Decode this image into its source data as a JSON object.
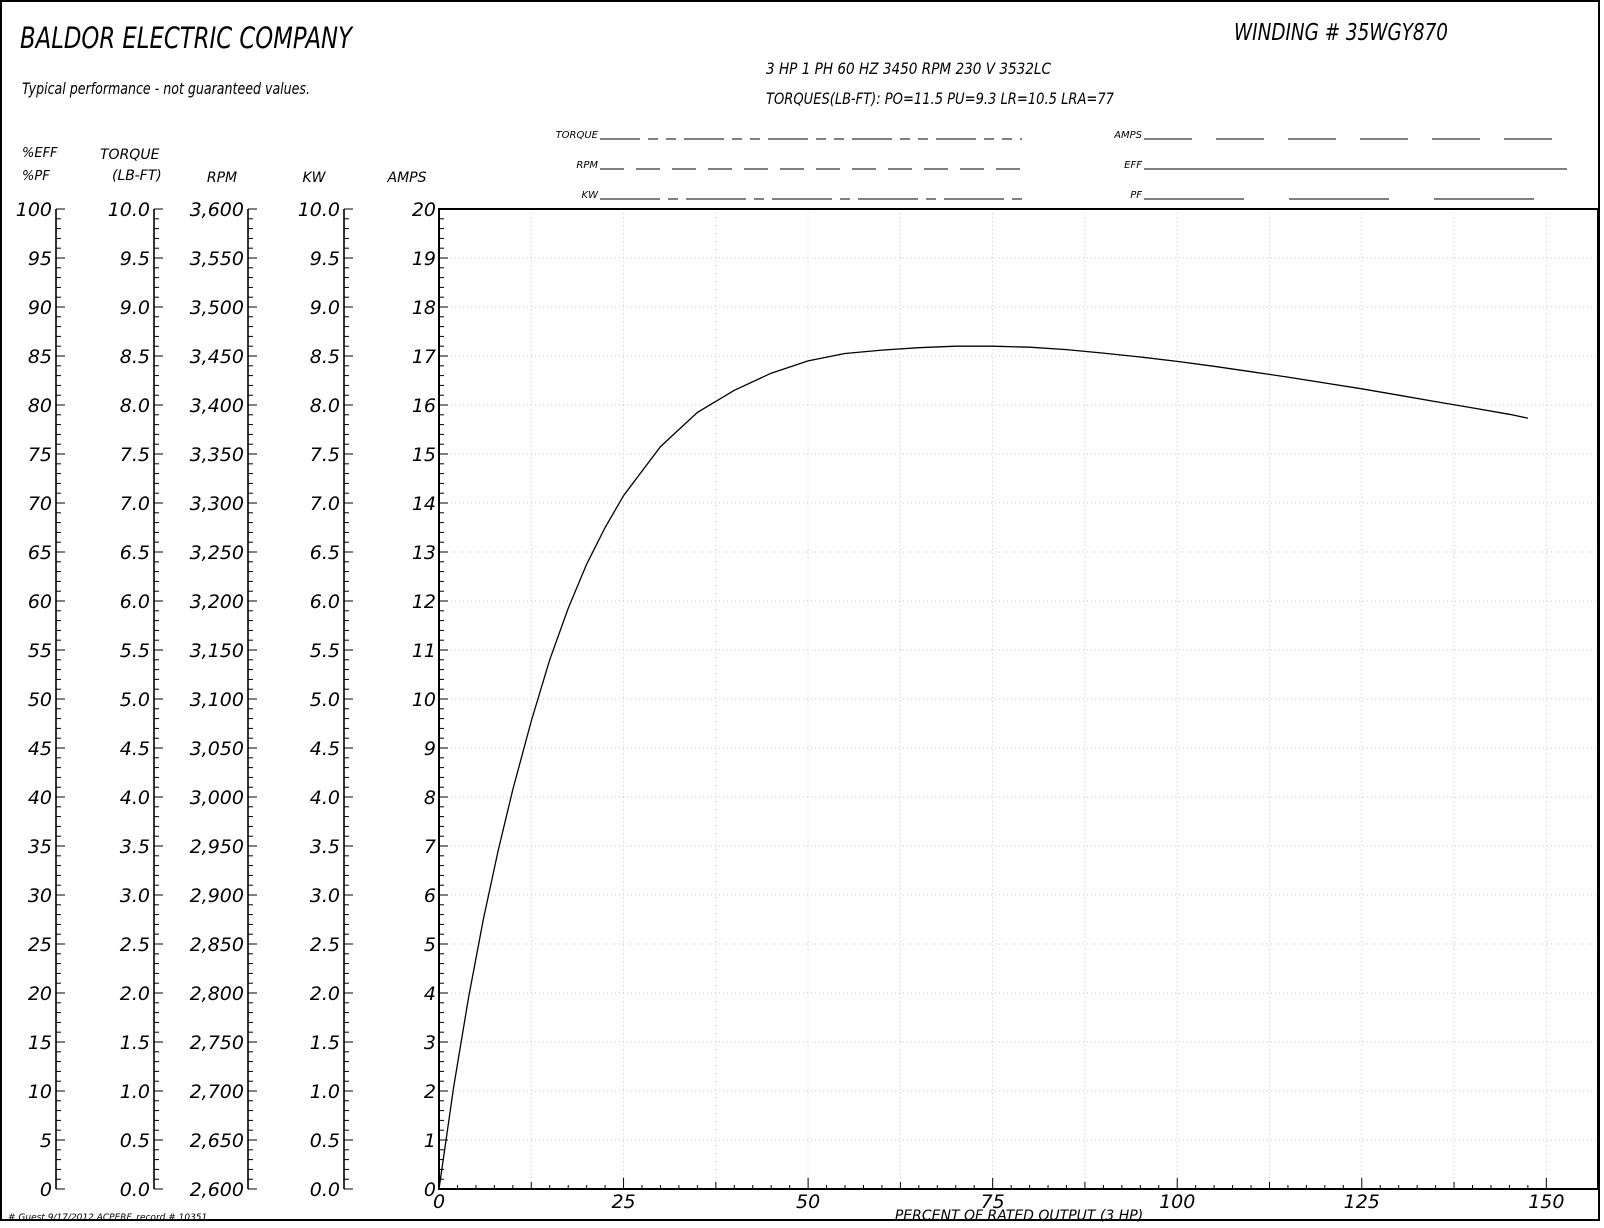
{
  "header": {
    "company": "BALDOR ELECTRIC COMPANY",
    "disclaimer": "Typical performance - not guaranteed values.",
    "winding": "WINDING # 35WGY870",
    "rating": "3 HP  1 PH  60 HZ  3450 RPM  230 V  3532LC",
    "torques": "TORQUES(LB-FT): PO=11.5  PU=9.3  LR=10.5  LRA=77"
  },
  "legend": {
    "torque": "TORQUE",
    "rpm": "RPM",
    "kw": "KW",
    "amps": "AMPS",
    "eff": "EFF",
    "pf": "PF"
  },
  "axes": {
    "eff_pf": {
      "title1": "%EFF",
      "title2": "%PF",
      "labels": [
        "0",
        "5",
        "10",
        "15",
        "20",
        "25",
        "30",
        "35",
        "40",
        "45",
        "50",
        "55",
        "60",
        "65",
        "70",
        "75",
        "80",
        "85",
        "90",
        "95",
        "100"
      ]
    },
    "torque": {
      "title1": "TORQUE",
      "title2": "(LB-FT)",
      "labels": [
        "0.0",
        "0.5",
        "1.0",
        "1.5",
        "2.0",
        "2.5",
        "3.0",
        "3.5",
        "4.0",
        "4.5",
        "5.0",
        "5.5",
        "6.0",
        "6.5",
        "7.0",
        "7.5",
        "8.0",
        "8.5",
        "9.0",
        "9.5",
        "10.0"
      ]
    },
    "rpm": {
      "title": "RPM",
      "labels": [
        "2,600",
        "2,650",
        "2,700",
        "2,750",
        "2,800",
        "2,850",
        "2,900",
        "2,950",
        "3,000",
        "3,050",
        "3,100",
        "3,150",
        "3,200",
        "3,250",
        "3,300",
        "3,350",
        "3,400",
        "3,450",
        "3,500",
        "3,550",
        "3,600"
      ]
    },
    "kw": {
      "title": "KW",
      "labels": [
        "0.0",
        "0.5",
        "1.0",
        "1.5",
        "2.0",
        "2.5",
        "3.0",
        "3.5",
        "4.0",
        "4.5",
        "5.0",
        "5.5",
        "6.0",
        "6.5",
        "7.0",
        "7.5",
        "8.0",
        "8.5",
        "9.0",
        "9.5",
        "10.0"
      ]
    },
    "amps": {
      "title": "AMPS",
      "labels": [
        "0",
        "1",
        "2",
        "3",
        "4",
        "5",
        "6",
        "7",
        "8",
        "9",
        "10",
        "11",
        "12",
        "13",
        "14",
        "15",
        "16",
        "17",
        "18",
        "19",
        "20"
      ]
    },
    "x": {
      "title": "PERCENT OF RATED OUTPUT (3 HP)",
      "labels": [
        "0",
        "25",
        "50",
        "75",
        "100",
        "125",
        "150"
      ]
    }
  },
  "footer": "# Guest 9/17/2012 ACPERF, record # 10351",
  "chart_data": {
    "type": "line",
    "title": "WINDING # 35WGY870",
    "xlabel": "PERCENT OF RATED OUTPUT (3 HP)",
    "ylabel": "AMPS",
    "xlim": [
      0,
      157
    ],
    "ylim": [
      0,
      20
    ],
    "grid": true,
    "series": [
      {
        "color": "#000000",
        "x": [
          0,
          2,
          4,
          6,
          8,
          10,
          12.5,
          15,
          17.5,
          20,
          22.5,
          25,
          30,
          35,
          40,
          45,
          50,
          55,
          60,
          65,
          70,
          75,
          80,
          85,
          90,
          95,
          100,
          105,
          110,
          115,
          120,
          125,
          130,
          135,
          140,
          145,
          147.5
        ],
        "y": [
          0,
          2.1,
          3.9,
          5.5,
          6.9,
          8.15,
          9.55,
          10.8,
          11.85,
          12.75,
          13.5,
          14.15,
          15.15,
          15.85,
          16.3,
          16.65,
          16.9,
          17.05,
          17.12,
          17.17,
          17.2,
          17.2,
          17.18,
          17.13,
          17.06,
          16.98,
          16.89,
          16.79,
          16.68,
          16.57,
          16.45,
          16.33,
          16.2,
          16.07,
          15.94,
          15.81,
          15.73
        ]
      }
    ]
  }
}
